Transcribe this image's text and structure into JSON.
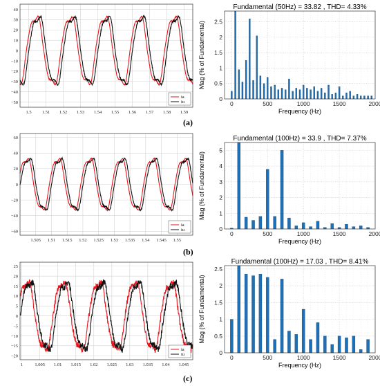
{
  "figure_labels": [
    "(a)",
    "(b)",
    "(c)"
  ],
  "chart_data": [
    {
      "id": "a-wave",
      "type": "line",
      "title": "",
      "xlabel": "",
      "ylabel": "",
      "xlim": [
        1.495,
        1.595
      ],
      "ylim": [
        -55,
        45
      ],
      "xticks": [
        1.5,
        1.51,
        1.52,
        1.53,
        1.54,
        1.55,
        1.56,
        1.57,
        1.58,
        1.59
      ],
      "xtick_labels": [
        "1.5",
        "1.51",
        "1.52",
        "1.53",
        "1.54",
        "1.55",
        "1.56",
        "1.57",
        "1.58",
        "1.59"
      ],
      "yticks": [
        -50,
        -40,
        -30,
        -20,
        -10,
        0,
        10,
        20,
        30,
        40
      ],
      "ytick_labels": [
        "−50",
        "−40",
        "−30",
        "−20",
        "−10",
        "0",
        "10",
        "20",
        "30",
        "40"
      ],
      "grid": true,
      "legend_position": "bottom-right",
      "series": [
        {
          "name": "ia",
          "color": "#e8141b",
          "frequency_hz": 50,
          "amplitude": 34,
          "phase_deg": 20,
          "noise": 0.6
        },
        {
          "name": "iu",
          "color": "#111111",
          "frequency_hz": 50,
          "amplitude": 34,
          "phase_deg": -5,
          "noise": 1.0
        }
      ]
    },
    {
      "id": "a-fft",
      "type": "bar",
      "title": "Fundamental (50Hz) = 33.82 , THD= 4.33%",
      "xlabel": "Frequency (Hz)",
      "ylabel": "Mag (% of Fundamental)",
      "xlim": [
        -100,
        2000
      ],
      "ylim": [
        0,
        2.85
      ],
      "xticks": [
        0,
        500,
        1000,
        1500,
        2000
      ],
      "xtick_labels": [
        "0",
        "500",
        "1000",
        "1500",
        "2000"
      ],
      "yticks": [
        0,
        0.5,
        1,
        1.5,
        2,
        2.5
      ],
      "ytick_labels": [
        "0",
        "0.5",
        "1",
        "1.5",
        "2",
        "2.5"
      ],
      "grid": true,
      "bar_color": "#1f6fb5",
      "bar_width": 20,
      "x": [
        0,
        50,
        100,
        150,
        200,
        250,
        300,
        350,
        400,
        450,
        500,
        550,
        600,
        650,
        700,
        750,
        800,
        850,
        900,
        950,
        1000,
        1050,
        1100,
        1150,
        1200,
        1250,
        1300,
        1350,
        1400,
        1450,
        1500,
        1550,
        1600,
        1650,
        1700,
        1750,
        1800,
        1850,
        1900,
        1950
      ],
      "values": [
        0.25,
        2.85,
        0.95,
        0.55,
        1.25,
        2.6,
        0.6,
        2.05,
        0.75,
        0.5,
        0.7,
        0.4,
        0.45,
        0.3,
        0.35,
        0.3,
        0.65,
        0.25,
        0.35,
        0.3,
        0.45,
        0.35,
        0.3,
        0.4,
        0.25,
        0.35,
        0.2,
        0.45,
        0.15,
        0.2,
        0.4,
        0.1,
        0.2,
        0.25,
        0.1,
        0.15,
        0.1,
        0.1,
        0.1,
        0.1
      ]
    },
    {
      "id": "b-wave",
      "type": "line",
      "title": "",
      "xlabel": "",
      "ylabel": "",
      "xlim": [
        1.5,
        1.555
      ],
      "ylim": [
        -65,
        65
      ],
      "xticks": [
        1.505,
        1.51,
        1.515,
        1.52,
        1.525,
        1.53,
        1.535,
        1.54,
        1.545,
        1.55
      ],
      "xtick_labels": [
        "1.505",
        "1.51",
        "1.515",
        "1.52",
        "1.525",
        "1.53",
        "1.535",
        "1.54",
        "1.545",
        "1.55"
      ],
      "yticks": [
        -60,
        -40,
        -20,
        0,
        20,
        40,
        60
      ],
      "ytick_labels": [
        "−60",
        "−40",
        "−20",
        "0",
        "20",
        "40",
        "60"
      ],
      "grid": true,
      "legend_position": "bottom-right",
      "series": [
        {
          "name": "ia",
          "color": "#e8141b",
          "frequency_hz": 100,
          "amplitude": 34,
          "phase_deg": 20,
          "noise": 0.6
        },
        {
          "name": "iu",
          "color": "#111111",
          "frequency_hz": 100,
          "amplitude": 34,
          "phase_deg": -5,
          "noise": 1.0
        }
      ]
    },
    {
      "id": "b-fft",
      "type": "bar",
      "title": "Fundamental (100Hz) = 33.9 , THD= 7.37%",
      "xlabel": "Frequency (Hz)",
      "ylabel": "Mag (% of Fundamental)",
      "xlim": [
        -100,
        2000
      ],
      "ylim": [
        0,
        5.5
      ],
      "xticks": [
        0,
        500,
        1000,
        1500,
        2000
      ],
      "xtick_labels": [
        "0",
        "500",
        "1000",
        "1500",
        "2000"
      ],
      "yticks": [
        0,
        1,
        2,
        3,
        4,
        5
      ],
      "ytick_labels": [
        "0",
        "1",
        "2",
        "3",
        "4",
        "5"
      ],
      "grid": true,
      "bar_color": "#1f6fb5",
      "bar_width": 40,
      "x": [
        0,
        100,
        200,
        300,
        400,
        500,
        600,
        700,
        800,
        900,
        1000,
        1100,
        1200,
        1300,
        1400,
        1500,
        1600,
        1700,
        1800,
        1900
      ],
      "values": [
        0.05,
        5.5,
        0.75,
        0.55,
        0.8,
        3.8,
        0.8,
        5.0,
        0.7,
        0.2,
        0.4,
        0.15,
        0.5,
        0.1,
        0.35,
        0.1,
        0.3,
        0.15,
        0.2,
        0.1
      ]
    },
    {
      "id": "c-wave",
      "type": "line",
      "title": "",
      "xlabel": "",
      "ylabel": "",
      "xlim": [
        0.9995,
        1.0475
      ],
      "ylim": [
        -22,
        27
      ],
      "xticks": [
        1,
        1.005,
        1.01,
        1.015,
        1.02,
        1.025,
        1.03,
        1.035,
        1.04,
        1.045
      ],
      "xtick_labels": [
        "1",
        "1.005",
        "1.01",
        "1.015",
        "1.02",
        "1.025",
        "1.03",
        "1.035",
        "1.04",
        "1.045"
      ],
      "yticks": [
        -20,
        -15,
        -10,
        -5,
        0,
        5,
        10,
        15,
        20,
        25
      ],
      "ytick_labels": [
        "−20",
        "−15",
        "−10",
        "−5",
        "0",
        "5",
        "10",
        "15",
        "20",
        "25"
      ],
      "grid": true,
      "legend_position": "bottom-right",
      "series": [
        {
          "name": "ia",
          "color": "#e8141b",
          "frequency_hz": 100,
          "amplitude": 17.5,
          "phase_deg": 45,
          "noise": 1.6
        },
        {
          "name": "iu",
          "color": "#111111",
          "frequency_hz": 100,
          "amplitude": 17.5,
          "phase_deg": 15,
          "noise": 1.6
        }
      ]
    },
    {
      "id": "c-fft",
      "type": "bar",
      "title": "Fundamental (100Hz) = 17.03 , THD= 8.41%",
      "xlabel": "Frequency (Hz)",
      "ylabel": "Mag (% of Fundamental)",
      "xlim": [
        -100,
        2000
      ],
      "ylim": [
        0,
        2.6
      ],
      "xticks": [
        0,
        500,
        1000,
        1500,
        2000
      ],
      "xtick_labels": [
        "0",
        "500",
        "1000",
        "1500",
        "2000"
      ],
      "yticks": [
        0,
        0.5,
        1,
        1.5,
        2,
        2.5
      ],
      "ytick_labels": [
        "0",
        "0.5",
        "1",
        "1.5",
        "2",
        "2.5"
      ],
      "grid": true,
      "bar_color": "#1f6fb5",
      "bar_width": 40,
      "x": [
        0,
        100,
        200,
        300,
        400,
        500,
        600,
        700,
        800,
        900,
        1000,
        1100,
        1200,
        1300,
        1400,
        1500,
        1600,
        1700,
        1800,
        1900
      ],
      "values": [
        1.0,
        2.6,
        2.35,
        2.3,
        2.35,
        2.25,
        0.4,
        2.2,
        0.65,
        0.55,
        1.3,
        0.4,
        0.9,
        0.5,
        0.25,
        0.5,
        0.45,
        0.5,
        0.1,
        0.4
      ]
    }
  ]
}
